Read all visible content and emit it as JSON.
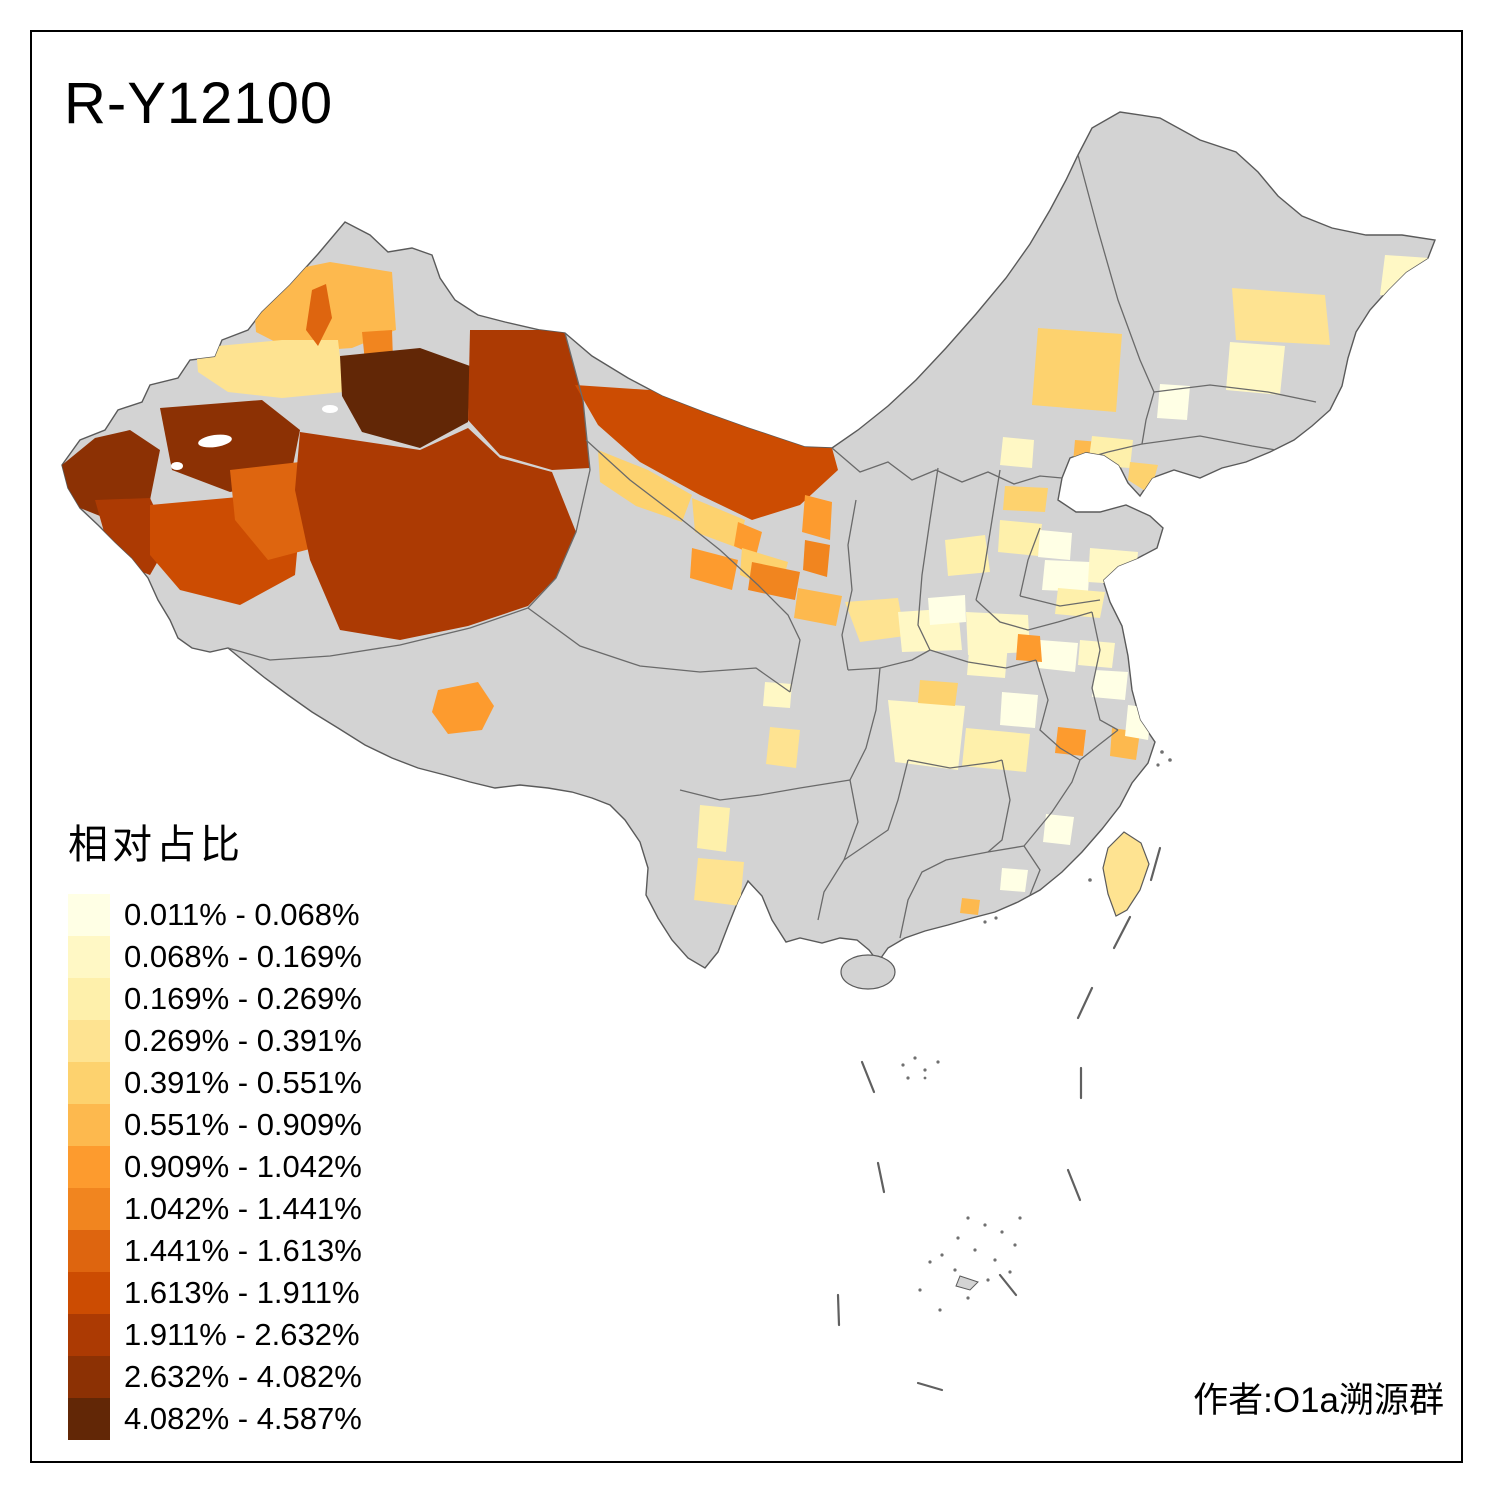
{
  "title": "R-Y12100",
  "attribution": "作者:O1a溯源群",
  "legend": {
    "title": "相对占比",
    "bins": [
      {
        "label": "0.011% - 0.068%",
        "color": "#FFFFE5"
      },
      {
        "label": "0.068% - 0.169%",
        "color": "#FFF8C5"
      },
      {
        "label": "0.169% - 0.269%",
        "color": "#FEF0AB"
      },
      {
        "label": "0.269% - 0.391%",
        "color": "#FEE391"
      },
      {
        "label": "0.391% - 0.551%",
        "color": "#FDD26E"
      },
      {
        "label": "0.551% - 0.909%",
        "color": "#FDB94E"
      },
      {
        "label": "0.909% - 1.042%",
        "color": "#FD9B2E"
      },
      {
        "label": "1.042% - 1.441%",
        "color": "#F1851F"
      },
      {
        "label": "1.441% - 1.613%",
        "color": "#DE650F"
      },
      {
        "label": "1.613% - 1.911%",
        "color": "#CC4C02"
      },
      {
        "label": "1.911% - 2.632%",
        "color": "#AC3A03"
      },
      {
        "label": "2.632% - 4.082%",
        "color": "#8C3104"
      },
      {
        "label": "4.082% - 4.587%",
        "color": "#622706"
      }
    ]
  },
  "map": {
    "land_fill": "#D3D3D3",
    "border_color": "#6A6A6A",
    "outline_color": "#5A5A5A",
    "sea_fill": "#FFFFFF",
    "lake_fill": "#FFFFFF",
    "dash_line_color": "#606060",
    "island_dot_color": "#707070",
    "regions": {
      "tacheng": 6,
      "karamay": 9,
      "yili": 4,
      "shihezi": 8,
      "urumqi_changji": 13,
      "hami": 11,
      "korla_west": 12,
      "kashgar": 12,
      "kizilsu": 11,
      "hotan": 10,
      "aksu_south": 9,
      "bayingol": 11,
      "alxa": 10,
      "jiuquan": 5,
      "zhangye": 5,
      "jinchang": 7,
      "wuwei": 5,
      "xining": 7,
      "lanzhou": 8,
      "dingxi": 6,
      "yinchuan": 7,
      "wuzhong": 8,
      "lhasa": 7,
      "baoji_xian": 4,
      "weinan": 2,
      "yuncheng": 1,
      "luoyang": 2,
      "taiyuan": 3,
      "beijing": 2,
      "tangshan": 5,
      "shijiazhuang": 3,
      "hengshui": 1,
      "jinan": 1,
      "qingdao": 2,
      "linyi": 3,
      "huludao": 6,
      "zhengzhou_east": 2,
      "shangqiu": 1,
      "xuzhou": 2,
      "huaian": 1,
      "fuyang": 7,
      "nanyang_changde": 2,
      "hefei": 1,
      "jiangxi_band": 3,
      "jingzhou": 5,
      "shangrao": 7,
      "nantong": 6,
      "shanghai_area": 1,
      "chengdu_east": 2,
      "yibin": 4,
      "lijiang": 3,
      "kunming": 4,
      "fuzhou": 1,
      "shantou": 1,
      "zhuhai": 6,
      "harbin": 4,
      "suihua": 2,
      "tongliao": 5,
      "changchun": 1,
      "shenyang": 3,
      "dalian": 5,
      "jiamusi": 2,
      "taiwan": 4
    }
  }
}
